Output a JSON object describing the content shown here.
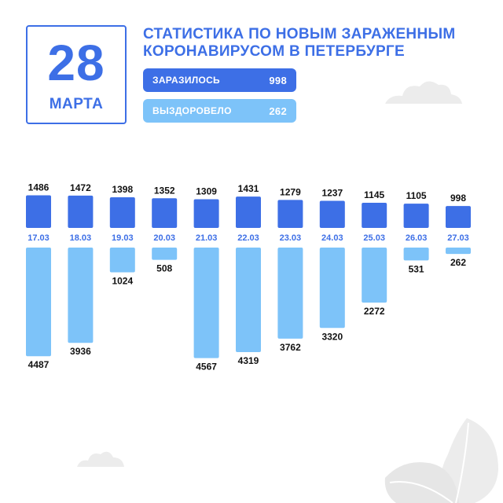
{
  "header": {
    "day": "28",
    "month": "МАРТА",
    "title_line1": "СТАТИСТИКА ПО НОВЫМ ЗАРАЖЕННЫМ",
    "title_line2": "КОРОНАВИРУСОМ В ПЕТЕРБУРГЕ"
  },
  "legend": {
    "infected_label": "ЗАРАЗИЛОСЬ",
    "infected_value": "998",
    "recovered_label": "ВЫЗДОРОВЕЛО",
    "recovered_value": "262"
  },
  "colors": {
    "accent": "#3d6fe6",
    "light": "#7dc3f9",
    "text_dark": "#111111"
  },
  "chart_data": {
    "type": "bar",
    "categories": [
      "17.03",
      "18.03",
      "19.03",
      "20.03",
      "21.03",
      "22.03",
      "23.03",
      "24.03",
      "25.03",
      "26.03",
      "27.03"
    ],
    "series": [
      {
        "name": "ЗАРАЗИЛОСЬ",
        "values": [
          1486,
          1472,
          1398,
          1352,
          1309,
          1431,
          1279,
          1237,
          1145,
          1105,
          998
        ]
      },
      {
        "name": "ВЫЗДОРОВЕЛО",
        "values": [
          4487,
          3936,
          1024,
          508,
          4567,
          4319,
          3762,
          3320,
          2272,
          531,
          262
        ]
      }
    ],
    "title": "СТАТИСТИКА ПО НОВЫМ ЗАРАЖЕННЫМ КОРОНАВИРУСОМ В ПЕТЕРБУРГЕ",
    "xlabel": "",
    "ylabel": ""
  }
}
